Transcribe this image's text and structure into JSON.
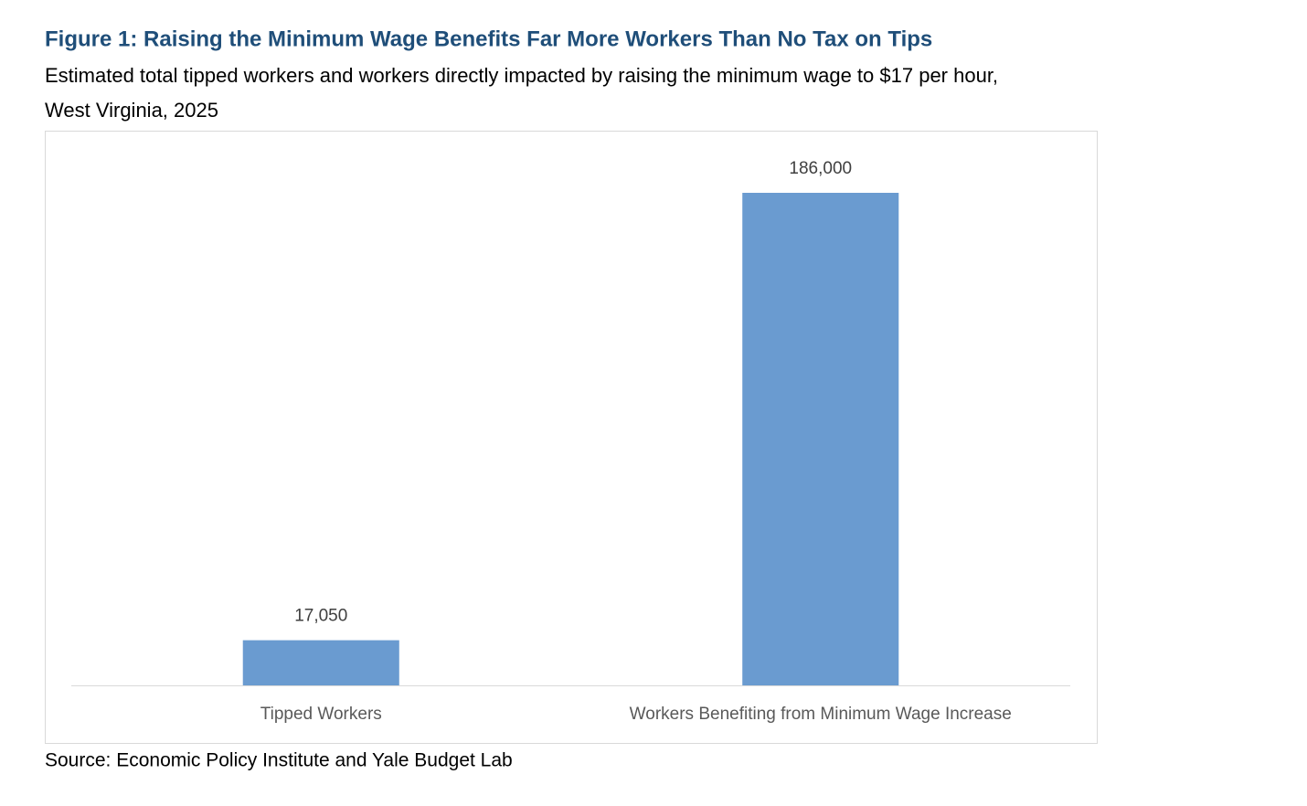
{
  "chart_data": {
    "type": "bar",
    "title": "Figure 1: Raising the Minimum Wage Benefits Far More Workers Than No Tax on Tips",
    "subtitle": [
      "Estimated total tipped workers and workers directly impacted by raising the minimum wage to $17 per hour,",
      "West Virginia, 2025"
    ],
    "source": "Source: Economic Policy Institute and Yale Budget Lab",
    "categories": [
      "Tipped Workers",
      "Workers Benefiting from Minimum Wage Increase"
    ],
    "values": [
      17050,
      186000
    ],
    "value_labels": [
      "17,050",
      "186,000"
    ],
    "color": "#6a9bd0"
  }
}
